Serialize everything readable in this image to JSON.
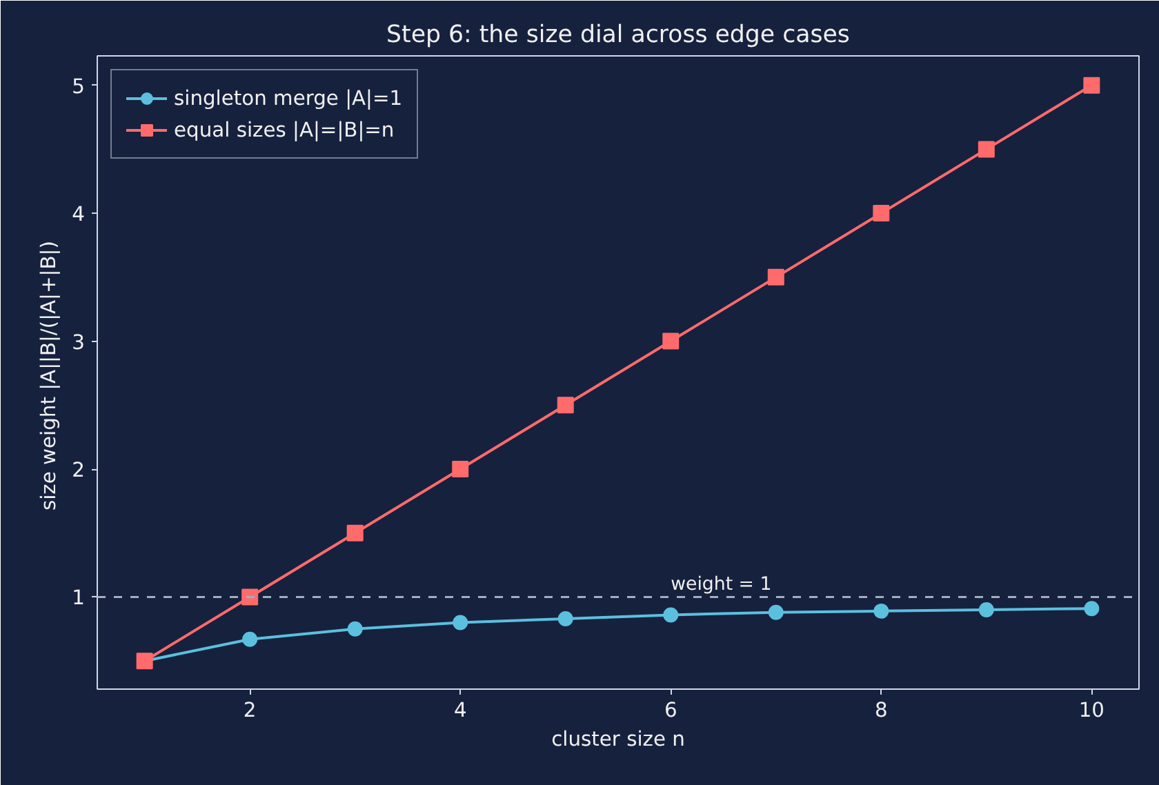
{
  "chart_data": {
    "type": "line",
    "title": "Step 6: the size dial across edge cases",
    "xlabel": "cluster size n",
    "ylabel": "size weight  |A||B|/(|A|+|B|)",
    "x": [
      1,
      2,
      3,
      4,
      5,
      6,
      7,
      8,
      9,
      10
    ],
    "series": [
      {
        "name": "singleton merge |A|=1",
        "color": "#5bc0de",
        "marker": "circle",
        "values": [
          0.5,
          0.67,
          0.75,
          0.8,
          0.83,
          0.86,
          0.88,
          0.89,
          0.9,
          0.91
        ]
      },
      {
        "name": "equal sizes |A|=|B|=n",
        "color": "#ff6b6b",
        "marker": "square",
        "values": [
          0.5,
          1.0,
          1.5,
          2.0,
          2.5,
          3.0,
          3.5,
          4.0,
          4.5,
          5.0
        ]
      }
    ],
    "xlim": [
      0.55,
      10.45
    ],
    "ylim": [
      0.28,
      5.23
    ],
    "xticks": [
      2,
      4,
      6,
      8,
      10
    ],
    "yticks": [
      1,
      2,
      3,
      4,
      5
    ],
    "ref_lines": [
      {
        "axis": "y",
        "value": 1,
        "label": "weight = 1",
        "color": "#a0aec0",
        "line_style": "dashed"
      }
    ],
    "legend": "top left",
    "grid": false,
    "line_style": "solid"
  }
}
